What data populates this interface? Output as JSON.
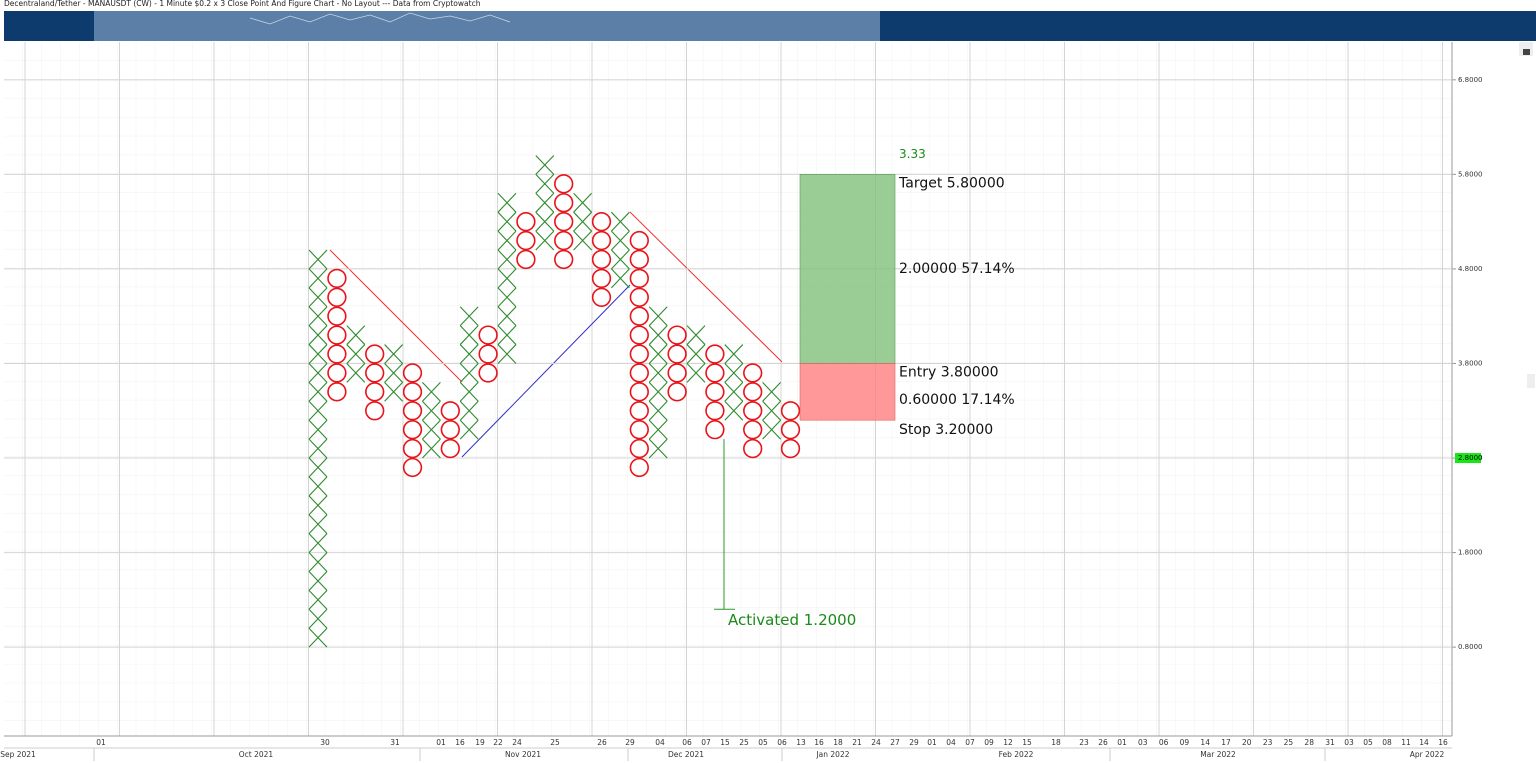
{
  "chart_data": {
    "type": "point_and_figure",
    "title": "Decentraland/Tether - MANAUSDT (CW) - 1 Minute $0.2 x 3 Close Point And Figure Chart - No Layout --- Data from Cryptowatch",
    "box_size": 0.2,
    "x_color": "#2e8b2e",
    "o_color": "#e8141a",
    "ylim": [
      -0.14,
      7.2
    ],
    "yticks": [
      {
        "value": 0.8,
        "label": "0.8000"
      },
      {
        "value": 1.8,
        "label": "1.8000"
      },
      {
        "value": 2.8,
        "label": "2.8000"
      },
      {
        "value": 3.8,
        "label": "3.8000"
      },
      {
        "value": 4.8,
        "label": "4.8000"
      },
      {
        "value": 5.8,
        "label": "5.8000"
      },
      {
        "value": 6.8,
        "label": "6.8000"
      }
    ],
    "last_price": {
      "value": 2.8,
      "label": "2.8000"
    },
    "columns": [
      {
        "type": "X",
        "high": 5.0,
        "low": 0.8
      },
      {
        "type": "O",
        "high": 4.8,
        "low": 3.4
      },
      {
        "type": "X",
        "high": 4.2,
        "low": 3.6
      },
      {
        "type": "O",
        "high": 4.0,
        "low": 3.2
      },
      {
        "type": "X",
        "high": 4.0,
        "low": 3.4
      },
      {
        "type": "O",
        "high": 3.8,
        "low": 2.6
      },
      {
        "type": "X",
        "high": 3.6,
        "low": 2.8
      },
      {
        "type": "O",
        "high": 3.4,
        "low": 2.8
      },
      {
        "type": "X",
        "high": 4.4,
        "low": 3.0
      },
      {
        "type": "O",
        "high": 4.2,
        "low": 3.6
      },
      {
        "type": "X",
        "high": 5.6,
        "low": 3.8
      },
      {
        "type": "O",
        "high": 5.4,
        "low": 4.8
      },
      {
        "type": "X",
        "high": 6.0,
        "low": 5.0
      },
      {
        "type": "O",
        "high": 5.8,
        "low": 4.8
      },
      {
        "type": "X",
        "high": 5.6,
        "low": 5.0
      },
      {
        "type": "O",
        "high": 5.4,
        "low": 4.4
      },
      {
        "type": "X",
        "high": 5.4,
        "low": 4.6
      },
      {
        "type": "O",
        "high": 5.2,
        "low": 2.6
      },
      {
        "type": "X",
        "high": 4.4,
        "low": 2.8
      },
      {
        "type": "O",
        "high": 4.2,
        "low": 3.4
      },
      {
        "type": "X",
        "high": 4.2,
        "low": 3.6
      },
      {
        "type": "O",
        "high": 4.0,
        "low": 3.0
      },
      {
        "type": "X",
        "high": 4.0,
        "low": 3.2
      },
      {
        "type": "O",
        "high": 3.8,
        "low": 2.8
      },
      {
        "type": "X",
        "high": 3.6,
        "low": 3.0
      },
      {
        "type": "O",
        "high": 3.4,
        "low": 2.8
      }
    ],
    "position": {
      "ratio_label": "3.33",
      "target": 5.8,
      "target_label": "Target  5.80000",
      "reward_label": "2.00000  57.14%",
      "entry": 3.8,
      "entry_label": "Entry  3.80000",
      "risk_label": "0.60000  17.14%",
      "stop": 3.2,
      "stop_label": "Stop  3.20000"
    },
    "activated": {
      "label": "Activated 1.2000",
      "from": 3.0,
      "to": 1.2
    },
    "date_labels": [
      "01",
      "30",
      "31",
      "01",
      "16",
      "19",
      "22",
      "24",
      "25",
      "26",
      "29",
      "04",
      "06",
      "07",
      "15",
      "25",
      "05",
      "06",
      "13",
      "16",
      "18",
      "21",
      "24",
      "27",
      "29",
      "01",
      "04",
      "07",
      "09",
      "12",
      "15",
      "18",
      "23",
      "26",
      "01",
      "03",
      "06",
      "09",
      "14",
      "17",
      "20",
      "23",
      "25",
      "28",
      "31",
      "03",
      "05",
      "08",
      "11",
      "14",
      "16"
    ],
    "month_labels": [
      "Sep 2021",
      "Oct 2021",
      "Nov 2021",
      "Dec 2021",
      "Jan 2022",
      "Feb 2022",
      "Mar 2022",
      "Apr 2022"
    ]
  }
}
